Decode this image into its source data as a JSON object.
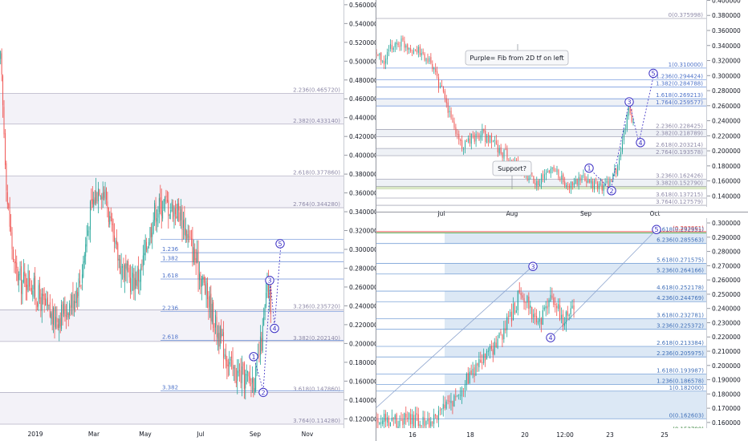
{
  "chart_data": [
    {
      "type": "candlestick",
      "panel": "left",
      "y_ticks": [
        "0.560000",
        "0.540000",
        "0.520000",
        "0.500000",
        "0.480000",
        "0.460000",
        "0.440000",
        "0.420000",
        "0.400000",
        "0.380000",
        "0.360000",
        "0.340000",
        "0.320000",
        "0.300000",
        "0.280000",
        "0.260000",
        "0.240000",
        "0.220000",
        "0.200000",
        "0.180000",
        "0.160000",
        "0.140000",
        "0.120000"
      ],
      "ylim": [
        0.11,
        0.565
      ],
      "x_ticks": [
        "2019",
        "Mar",
        "May",
        "Jul",
        "Sep",
        "Nov"
      ],
      "fib_levels": [
        {
          "label": "2.236(0.465720)",
          "value": 0.46572
        },
        {
          "label": "2.382(0.433140)",
          "value": 0.43314
        },
        {
          "label": "2.618(0.377860)",
          "value": 0.37786
        },
        {
          "label": "2.764(0.344280)",
          "value": 0.34428
        },
        {
          "label": "3.236(0.235720)",
          "value": 0.23572
        },
        {
          "label": "3.382(0.202140)",
          "value": 0.20214
        },
        {
          "label": "3.618(0.147860)",
          "value": 0.14786
        },
        {
          "label": "3.764(0.114280)",
          "value": 0.11428
        }
      ],
      "ext_levels": [
        {
          "label": "",
          "value": 0.3105
        },
        {
          "label": "1.236",
          "value": 0.2965
        },
        {
          "label": "1.382",
          "value": 0.2868
        },
        {
          "label": "1.618",
          "value": 0.2685
        },
        {
          "label": "2.236",
          "value": 0.2338
        },
        {
          "label": "2.618",
          "value": 0.2032
        },
        {
          "label": "3.382",
          "value": 0.1497
        }
      ],
      "waves": [
        {
          "label": "1",
          "value": 0.186
        },
        {
          "label": "2",
          "value": 0.148
        },
        {
          "label": "3",
          "value": 0.267
        },
        {
          "label": "4",
          "value": 0.216
        },
        {
          "label": "5",
          "value": 0.306
        }
      ]
    },
    {
      "type": "candlestick",
      "panel": "top-right",
      "y_ticks": [
        "0.400000",
        "0.380000",
        "0.360000",
        "0.340000",
        "0.320000",
        "0.300000",
        "0.280000",
        "0.260000",
        "0.240000",
        "0.220000",
        "0.200000",
        "0.180000",
        "0.160000",
        "0.140000"
      ],
      "ylim": [
        0.1255,
        0.4005
      ],
      "x_ticks": [
        "Jul",
        "Aug",
        "Sep",
        "Oct"
      ],
      "fib_levels": [
        {
          "label": "0(0.375998)",
          "value": 0.375998
        },
        {
          "label": "1(0.310000)",
          "value": 0.31
        },
        {
          "label": "1.236(0.294424)",
          "value": 0.294424
        },
        {
          "label": "1.382(0.284788)",
          "value": 0.284788
        },
        {
          "label": "1.618(0.269213)",
          "value": 0.269213
        },
        {
          "label": "1.764(0.259577)",
          "value": 0.259577
        },
        {
          "label": "2.236(0.228425)",
          "value": 0.228425
        },
        {
          "label": "2.382(0.218789)",
          "value": 0.218789
        },
        {
          "label": "2.618(0.203214)",
          "value": 0.203214
        },
        {
          "label": "2.764(0.193578)",
          "value": 0.193578
        },
        {
          "label": "3.236(0.162426)",
          "value": 0.162426
        },
        {
          "label": "3.382(0.152790)",
          "value": 0.15279
        },
        {
          "label": "3.618(0.137215)",
          "value": 0.137215
        },
        {
          "label": "3.764(0.127579)",
          "value": 0.127579
        }
      ],
      "annotations": [
        "Purple= Fib from 2D tf on left",
        "Support?"
      ],
      "waves": [
        {
          "label": "1",
          "value": 0.177
        },
        {
          "label": "2",
          "value": 0.147
        },
        {
          "label": "3",
          "value": 0.265
        },
        {
          "label": "4",
          "value": 0.211
        },
        {
          "label": "5",
          "value": 0.303
        }
      ]
    },
    {
      "type": "candlestick",
      "panel": "bottom-right",
      "y_ticks": [
        "0.300000",
        "0.290000",
        "0.280000",
        "0.270000",
        "0.260000",
        "0.250000",
        "0.240000",
        "0.230000",
        "0.220000",
        "0.210000",
        "0.200000",
        "0.190000",
        "0.180000",
        "0.170000",
        "0.160000"
      ],
      "ylim": [
        0.156,
        0.3034
      ],
      "x_ticks": [
        "16",
        "18",
        "20",
        "12:00",
        "23",
        "25"
      ],
      "fib_levels": [
        {
          "label": "(0.293861)",
          "value": 0.293861
        },
        {
          "label": "6.618(0.292951)",
          "value": 0.292951
        },
        {
          "label": "6.236(0.285563)",
          "value": 0.285563
        },
        {
          "label": "5.618(0.271575)",
          "value": 0.271575
        },
        {
          "label": "5.236(0.264166)",
          "value": 0.264166
        },
        {
          "label": "4.618(0.252178)",
          "value": 0.252178
        },
        {
          "label": "4.236(0.244769)",
          "value": 0.244769
        },
        {
          "label": "3.618(0.232781)",
          "value": 0.232781
        },
        {
          "label": "3.236(0.225372)",
          "value": 0.225372
        },
        {
          "label": "2.618(0.213384)",
          "value": 0.213384
        },
        {
          "label": "2.236(0.205975)",
          "value": 0.205975
        },
        {
          "label": "1.618(0.193987)",
          "value": 0.193987
        },
        {
          "label": "1.236(0.186578)",
          "value": 0.186578
        },
        {
          "label": "1(0.182000)",
          "value": 0.182
        },
        {
          "label": "0(0.162603)",
          "value": 0.162603
        },
        {
          "label": "(0.152790)",
          "value": 0.15279
        }
      ],
      "waves": [
        {
          "label": "3",
          "value": 0.2695
        },
        {
          "label": "4",
          "value": 0.2195
        },
        {
          "label": "5",
          "value": 0.2954
        }
      ]
    }
  ],
  "colors": {
    "up": "#26a69a",
    "down": "#ef5350",
    "fib_line": "#9598a1",
    "ext_line": "#2962ff",
    "fib_band": "#dce8f5",
    "wave": "#3b2fc4",
    "red_level": "#e53935",
    "green_level": "#4caf50"
  }
}
